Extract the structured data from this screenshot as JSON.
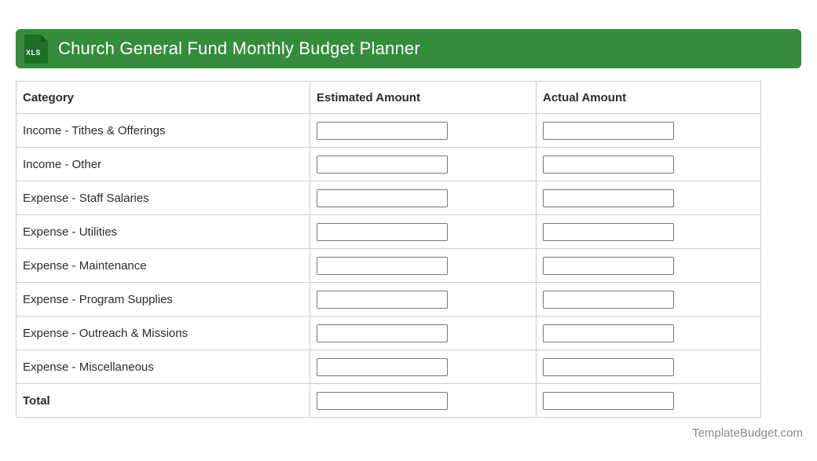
{
  "header": {
    "icon_label": "XLS",
    "title": "Church General Fund Monthly Budget Planner"
  },
  "table": {
    "columns": [
      "Category",
      "Estimated Amount",
      "Actual Amount"
    ],
    "rows": [
      {
        "category": "Income - Tithes & Offerings",
        "estimated": "",
        "actual": ""
      },
      {
        "category": "Income - Other",
        "estimated": "",
        "actual": ""
      },
      {
        "category": "Expense - Staff Salaries",
        "estimated": "",
        "actual": ""
      },
      {
        "category": "Expense - Utilities",
        "estimated": "",
        "actual": ""
      },
      {
        "category": "Expense - Maintenance",
        "estimated": "",
        "actual": ""
      },
      {
        "category": "Expense - Program Supplies",
        "estimated": "",
        "actual": ""
      },
      {
        "category": "Expense - Outreach & Missions",
        "estimated": "",
        "actual": ""
      },
      {
        "category": "Expense - Miscellaneous",
        "estimated": "",
        "actual": ""
      },
      {
        "category": "Total",
        "estimated": "",
        "actual": ""
      }
    ]
  },
  "footer": {
    "site_label": "TemplateBudget.com"
  },
  "colors": {
    "header_green": "#358c3c",
    "icon_green": "#1e7026",
    "icon_fold_green": "#145a1b",
    "table_border": "#cccccc",
    "input_border": "#767676",
    "text_dark": "#2b2b2b",
    "footer_gray": "#8a8a8a"
  }
}
